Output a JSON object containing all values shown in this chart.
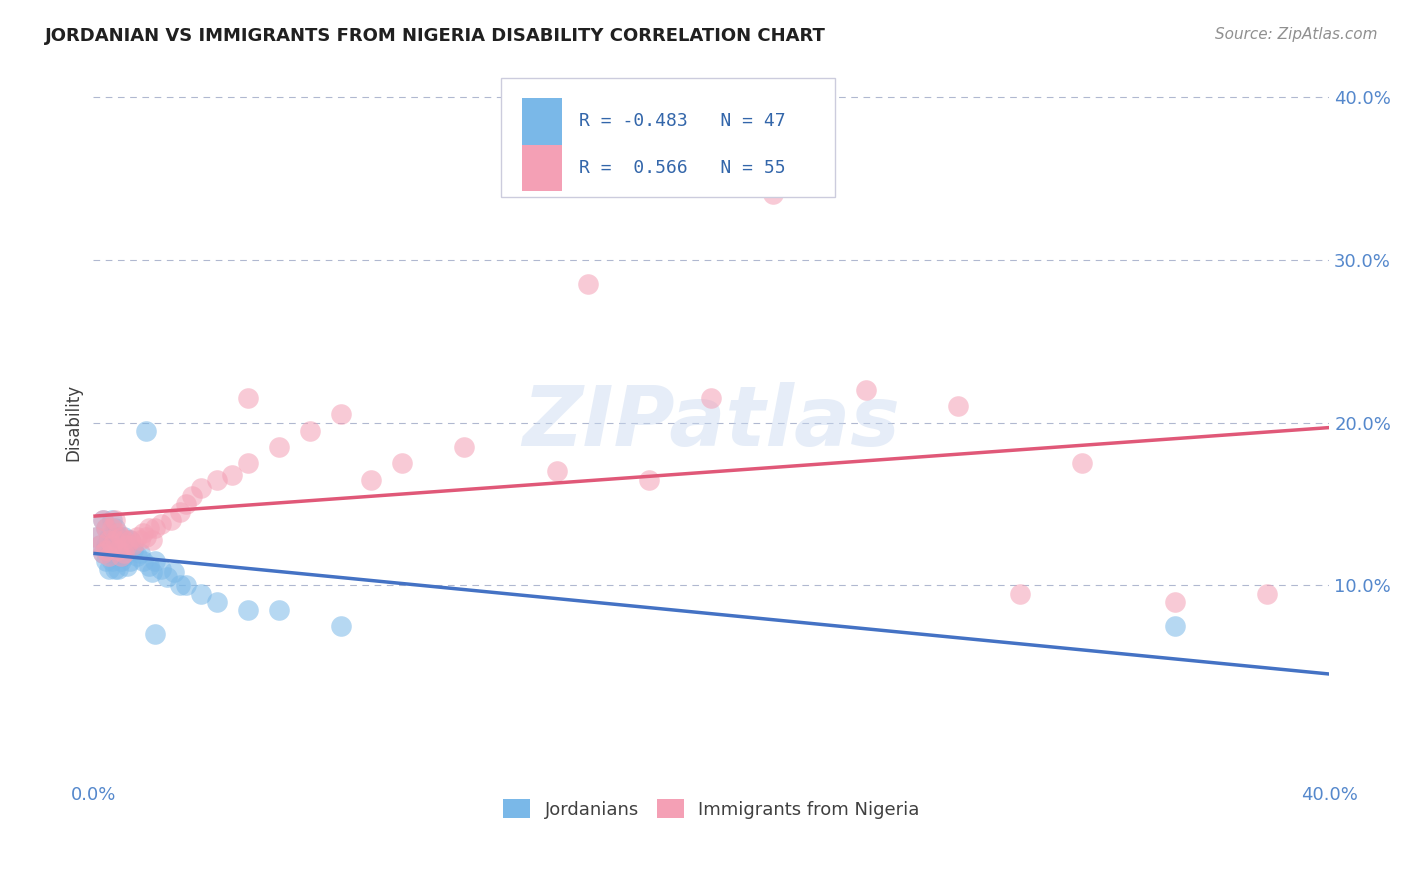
{
  "title": "JORDANIAN VS IMMIGRANTS FROM NIGERIA DISABILITY CORRELATION CHART",
  "source": "Source: ZipAtlas.com",
  "ylabel": "Disability",
  "xlim": [
    0.0,
    0.4
  ],
  "ylim": [
    -0.02,
    0.42
  ],
  "ytick_vals": [
    0.0,
    0.1,
    0.2,
    0.3,
    0.4
  ],
  "ytick_labels": [
    "",
    "10.0%",
    "20.0%",
    "30.0%",
    "40.0%"
  ],
  "xtick_vals": [
    0.0,
    0.4
  ],
  "xtick_labels": [
    "0.0%",
    "40.0%"
  ],
  "color_blue": "#7ab8e8",
  "color_pink": "#f4a0b5",
  "color_blue_line": "#4472c4",
  "color_pink_line": "#e05878",
  "color_grid": "#b0b8d0",
  "watermark": "ZIPatlas",
  "R_jord": -0.483,
  "N_jord": 47,
  "R_nig": 0.566,
  "N_nig": 55,
  "jord_x": [
    0.001,
    0.002,
    0.003,
    0.003,
    0.004,
    0.004,
    0.004,
    0.005,
    0.005,
    0.005,
    0.006,
    0.006,
    0.006,
    0.007,
    0.007,
    0.007,
    0.008,
    0.008,
    0.008,
    0.009,
    0.009,
    0.01,
    0.01,
    0.011,
    0.011,
    0.012,
    0.012,
    0.013,
    0.014,
    0.015,
    0.016,
    0.017,
    0.018,
    0.019,
    0.02,
    0.022,
    0.024,
    0.026,
    0.028,
    0.03,
    0.035,
    0.04,
    0.05,
    0.06,
    0.08,
    0.35,
    0.02
  ],
  "jord_y": [
    0.13,
    0.125,
    0.14,
    0.12,
    0.135,
    0.125,
    0.115,
    0.13,
    0.12,
    0.11,
    0.14,
    0.125,
    0.115,
    0.135,
    0.12,
    0.11,
    0.13,
    0.12,
    0.11,
    0.125,
    0.115,
    0.13,
    0.118,
    0.125,
    0.112,
    0.128,
    0.115,
    0.122,
    0.118,
    0.12,
    0.115,
    0.195,
    0.112,
    0.108,
    0.115,
    0.11,
    0.105,
    0.108,
    0.1,
    0.1,
    0.095,
    0.09,
    0.085,
    0.085,
    0.075,
    0.075,
    0.07
  ],
  "nig_x": [
    0.001,
    0.002,
    0.003,
    0.003,
    0.004,
    0.004,
    0.005,
    0.005,
    0.006,
    0.006,
    0.007,
    0.007,
    0.008,
    0.008,
    0.009,
    0.009,
    0.01,
    0.01,
    0.011,
    0.012,
    0.013,
    0.014,
    0.015,
    0.016,
    0.017,
    0.018,
    0.019,
    0.02,
    0.022,
    0.025,
    0.028,
    0.03,
    0.032,
    0.035,
    0.04,
    0.045,
    0.05,
    0.06,
    0.07,
    0.08,
    0.09,
    0.1,
    0.12,
    0.15,
    0.18,
    0.2,
    0.22,
    0.25,
    0.28,
    0.3,
    0.32,
    0.35,
    0.38,
    0.16,
    0.05
  ],
  "nig_y": [
    0.13,
    0.125,
    0.14,
    0.12,
    0.135,
    0.122,
    0.128,
    0.118,
    0.135,
    0.125,
    0.14,
    0.128,
    0.132,
    0.122,
    0.13,
    0.118,
    0.128,
    0.12,
    0.125,
    0.128,
    0.125,
    0.13,
    0.128,
    0.132,
    0.13,
    0.135,
    0.128,
    0.135,
    0.138,
    0.14,
    0.145,
    0.15,
    0.155,
    0.16,
    0.165,
    0.168,
    0.175,
    0.185,
    0.195,
    0.205,
    0.165,
    0.175,
    0.185,
    0.17,
    0.165,
    0.215,
    0.34,
    0.22,
    0.21,
    0.095,
    0.175,
    0.09,
    0.095,
    0.285,
    0.215
  ]
}
